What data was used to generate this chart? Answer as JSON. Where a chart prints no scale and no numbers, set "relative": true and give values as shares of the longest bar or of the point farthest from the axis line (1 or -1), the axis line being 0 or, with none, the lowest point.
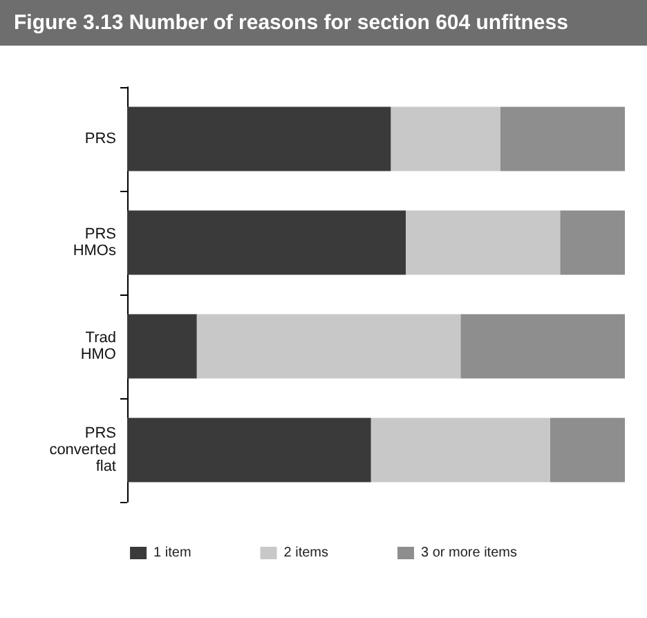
{
  "chart_data": {
    "type": "bar",
    "orientation": "horizontal",
    "stacked": true,
    "relative": true,
    "title": "Figure 3.13 Number of reasons for section 604 unfitness",
    "categories": [
      "PRS",
      "PRS HMOs",
      "Trad HMO",
      "PRS converted flat"
    ],
    "series": [
      {
        "name": "1 item",
        "color": "#3a3a3a",
        "values": [
          0.53,
          0.56,
          0.14,
          0.49
        ]
      },
      {
        "name": "2 items",
        "color": "#c8c8c8",
        "values": [
          0.22,
          0.31,
          0.53,
          0.36
        ]
      },
      {
        "name": "3 or more items",
        "color": "#8e8e8e",
        "values": [
          0.25,
          0.13,
          0.33,
          0.15
        ]
      }
    ],
    "legend": "bottom"
  }
}
